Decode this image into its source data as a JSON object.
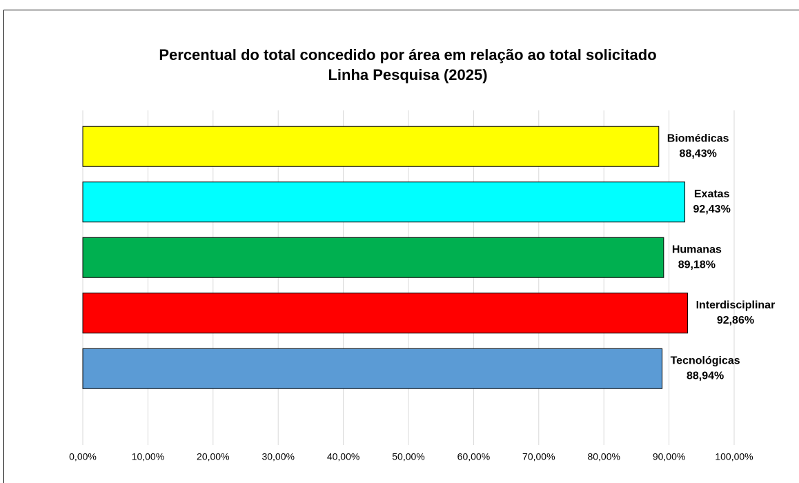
{
  "chart_data": {
    "type": "barh",
    "title": "Percentual do total concedido por área em relação ao total solicitado",
    "subtitle": "Linha Pesquisa (2025)",
    "categories": [
      "Biomédicas",
      "Exatas",
      "Humanas",
      "Interdisciplinar",
      "Tecnológicas"
    ],
    "values": [
      88.43,
      92.43,
      89.18,
      92.86,
      88.94
    ],
    "value_labels": [
      "88,43%",
      "92,43%",
      "89,18%",
      "92,86%",
      "88,94%"
    ],
    "colors": [
      "#ffff00",
      "#00ffff",
      "#00b050",
      "#ff0000",
      "#5b9bd5"
    ],
    "xlim": [
      0,
      100
    ],
    "xticks": [
      {
        "value": 0,
        "label": "0,00%"
      },
      {
        "value": 10,
        "label": "10,00%"
      },
      {
        "value": 20,
        "label": "20,00%"
      },
      {
        "value": 30,
        "label": "30,00%"
      },
      {
        "value": 40,
        "label": "40,00%"
      },
      {
        "value": 50,
        "label": "50,00%"
      },
      {
        "value": 60,
        "label": "60,00%"
      },
      {
        "value": 70,
        "label": "70,00%"
      },
      {
        "value": 80,
        "label": "80,00%"
      },
      {
        "value": 90,
        "label": "90,00%"
      },
      {
        "value": 100,
        "label": "100,00%"
      }
    ],
    "grid": true
  }
}
